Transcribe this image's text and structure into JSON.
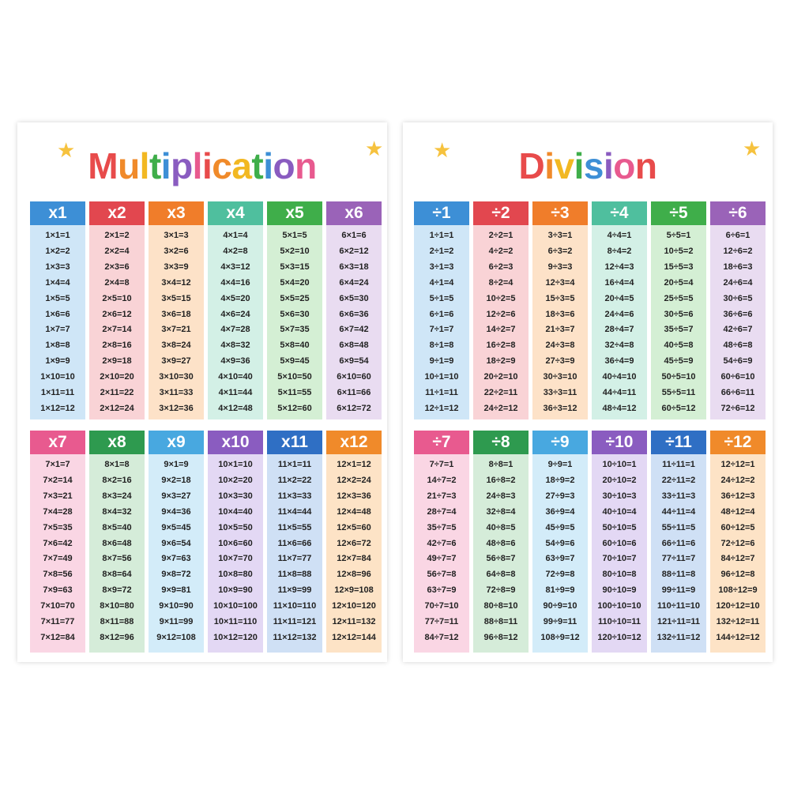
{
  "posters": [
    {
      "title": "Multiplication",
      "columns": [
        {
          "header": "x1",
          "items": [
            "1×1=1",
            "1×2=2",
            "1×3=3",
            "1×4=4",
            "1×5=5",
            "1×6=6",
            "1×7=7",
            "1×8=8",
            "1×9=9",
            "1×10=10",
            "1×11=11",
            "1×12=12"
          ]
        },
        {
          "header": "x2",
          "items": [
            "2×1=2",
            "2×2=4",
            "2×3=6",
            "2×4=8",
            "2×5=10",
            "2×6=12",
            "2×7=14",
            "2×8=16",
            "2×9=18",
            "2×10=20",
            "2×11=22",
            "2×12=24"
          ]
        },
        {
          "header": "x3",
          "items": [
            "3×1=3",
            "3×2=6",
            "3×3=9",
            "3×4=12",
            "3×5=15",
            "3×6=18",
            "3×7=21",
            "3×8=24",
            "3×9=27",
            "3×10=30",
            "3×11=33",
            "3×12=36"
          ]
        },
        {
          "header": "x4",
          "items": [
            "4×1=4",
            "4×2=8",
            "4×3=12",
            "4×4=16",
            "4×5=20",
            "4×6=24",
            "4×7=28",
            "4×8=32",
            "4×9=36",
            "4×10=40",
            "4×11=44",
            "4×12=48"
          ]
        },
        {
          "header": "x5",
          "items": [
            "5×1=5",
            "5×2=10",
            "5×3=15",
            "5×4=20",
            "5×5=25",
            "5×6=30",
            "5×7=35",
            "5×8=40",
            "5×9=45",
            "5×10=50",
            "5×11=55",
            "5×12=60"
          ]
        },
        {
          "header": "x6",
          "items": [
            "6×1=6",
            "6×2=12",
            "6×3=18",
            "6×4=24",
            "6×5=30",
            "6×6=36",
            "6×7=42",
            "6×8=48",
            "6×9=54",
            "6×10=60",
            "6×11=66",
            "6×12=72"
          ]
        },
        {
          "header": "x7",
          "items": [
            "7×1=7",
            "7×2=14",
            "7×3=21",
            "7×4=28",
            "7×5=35",
            "7×6=42",
            "7×7=49",
            "7×8=56",
            "7×9=63",
            "7×10=70",
            "7×11=77",
            "7×12=84"
          ]
        },
        {
          "header": "x8",
          "items": [
            "8×1=8",
            "8×2=16",
            "8×3=24",
            "8×4=32",
            "8×5=40",
            "8×6=48",
            "8×7=56",
            "8×8=64",
            "8×9=72",
            "8×10=80",
            "8×11=88",
            "8×12=96"
          ]
        },
        {
          "header": "x9",
          "items": [
            "9×1=9",
            "9×2=18",
            "9×3=27",
            "9×4=36",
            "9×5=45",
            "9×6=54",
            "9×7=63",
            "9×8=72",
            "9×9=81",
            "9×10=90",
            "9×11=99",
            "9×12=108"
          ]
        },
        {
          "header": "x10",
          "items": [
            "10×1=10",
            "10×2=20",
            "10×3=30",
            "10×4=40",
            "10×5=50",
            "10×6=60",
            "10×7=70",
            "10×8=80",
            "10×9=90",
            "10×10=100",
            "10×11=110",
            "10×12=120"
          ]
        },
        {
          "header": "x11",
          "items": [
            "11×1=11",
            "11×2=22",
            "11×3=33",
            "11×4=44",
            "11×5=55",
            "11×6=66",
            "11×7=77",
            "11×8=88",
            "11×9=99",
            "11×10=110",
            "11×11=121",
            "11×12=132"
          ]
        },
        {
          "header": "x12",
          "items": [
            "12×1=12",
            "12×2=24",
            "12×3=36",
            "12×4=48",
            "12×5=60",
            "12×6=72",
            "12×7=84",
            "12×8=96",
            "12×9=108",
            "12×10=120",
            "12×11=132",
            "12×12=144"
          ]
        }
      ]
    },
    {
      "title": "Division",
      "columns": [
        {
          "header": "÷1",
          "items": [
            "1÷1=1",
            "2÷1=2",
            "3÷1=3",
            "4÷1=4",
            "5÷1=5",
            "6÷1=6",
            "7÷1=7",
            "8÷1=8",
            "9÷1=9",
            "10÷1=10",
            "11÷1=11",
            "12÷1=12"
          ]
        },
        {
          "header": "÷2",
          "items": [
            "2÷2=1",
            "4÷2=2",
            "6÷2=3",
            "8÷2=4",
            "10÷2=5",
            "12÷2=6",
            "14÷2=7",
            "16÷2=8",
            "18÷2=9",
            "20÷2=10",
            "22÷2=11",
            "24÷2=12"
          ]
        },
        {
          "header": "÷3",
          "items": [
            "3÷3=1",
            "6÷3=2",
            "9÷3=3",
            "12÷3=4",
            "15÷3=5",
            "18÷3=6",
            "21÷3=7",
            "24÷3=8",
            "27÷3=9",
            "30÷3=10",
            "33÷3=11",
            "36÷3=12"
          ]
        },
        {
          "header": "÷4",
          "items": [
            "4÷4=1",
            "8÷4=2",
            "12÷4=3",
            "16÷4=4",
            "20÷4=5",
            "24÷4=6",
            "28÷4=7",
            "32÷4=8",
            "36÷4=9",
            "40÷4=10",
            "44÷4=11",
            "48÷4=12"
          ]
        },
        {
          "header": "÷5",
          "items": [
            "5÷5=1",
            "10÷5=2",
            "15÷5=3",
            "20÷5=4",
            "25÷5=5",
            "30÷5=6",
            "35÷5=7",
            "40÷5=8",
            "45÷5=9",
            "50÷5=10",
            "55÷5=11",
            "60÷5=12"
          ]
        },
        {
          "header": "÷6",
          "items": [
            "6÷6=1",
            "12÷6=2",
            "18÷6=3",
            "24÷6=4",
            "30÷6=5",
            "36÷6=6",
            "42÷6=7",
            "48÷6=8",
            "54÷6=9",
            "60÷6=10",
            "66÷6=11",
            "72÷6=12"
          ]
        },
        {
          "header": "÷7",
          "items": [
            "7÷7=1",
            "14÷7=2",
            "21÷7=3",
            "28÷7=4",
            "35÷7=5",
            "42÷7=6",
            "49÷7=7",
            "56÷7=8",
            "63÷7=9",
            "70÷7=10",
            "77÷7=11",
            "84÷7=12"
          ]
        },
        {
          "header": "÷8",
          "items": [
            "8÷8=1",
            "16÷8=2",
            "24÷8=3",
            "32÷8=4",
            "40÷8=5",
            "48÷8=6",
            "56÷8=7",
            "64÷8=8",
            "72÷8=9",
            "80÷8=10",
            "88÷8=11",
            "96÷8=12"
          ]
        },
        {
          "header": "÷9",
          "items": [
            "9÷9=1",
            "18÷9=2",
            "27÷9=3",
            "36÷9=4",
            "45÷9=5",
            "54÷9=6",
            "63÷9=7",
            "72÷9=8",
            "81÷9=9",
            "90÷9=10",
            "99÷9=11",
            "108÷9=12"
          ]
        },
        {
          "header": "÷10",
          "items": [
            "10÷10=1",
            "20÷10=2",
            "30÷10=3",
            "40÷10=4",
            "50÷10=5",
            "60÷10=6",
            "70÷10=7",
            "80÷10=8",
            "90÷10=9",
            "100÷10=10",
            "110÷10=11",
            "120÷10=12"
          ]
        },
        {
          "header": "÷11",
          "items": [
            "11÷11=1",
            "22÷11=2",
            "33÷11=3",
            "44÷11=4",
            "55÷11=5",
            "66÷11=6",
            "77÷11=7",
            "88÷11=8",
            "99÷11=9",
            "110÷11=10",
            "121÷11=11",
            "132÷11=12"
          ]
        },
        {
          "header": "÷12",
          "items": [
            "12÷12=1",
            "24÷12=2",
            "36÷12=3",
            "48÷12=4",
            "60÷12=5",
            "72÷12=6",
            "84÷12=7",
            "96÷12=8",
            "108÷12=9",
            "120÷12=10",
            "132÷12=11",
            "144÷12=12"
          ]
        }
      ]
    }
  ]
}
